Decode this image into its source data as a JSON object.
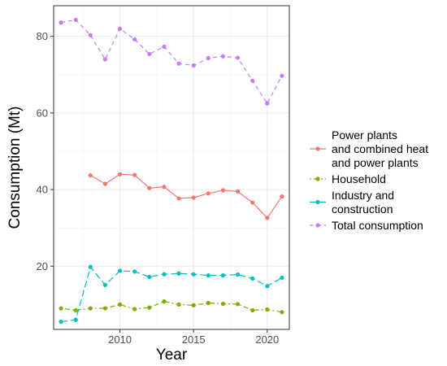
{
  "chart_data": {
    "type": "line",
    "title": "",
    "xlabel": "Year",
    "ylabel": "Consumption (Mt)",
    "xlim": [
      2005.5,
      2021.5
    ],
    "ylim": [
      3.5,
      88
    ],
    "x_ticks": [
      2010,
      2015,
      2020
    ],
    "y_ticks": [
      20,
      40,
      60,
      80
    ],
    "grid": true,
    "legend_position": "right",
    "x": [
      2006,
      2007,
      2008,
      2009,
      2010,
      2011,
      2012,
      2013,
      2014,
      2015,
      2016,
      2017,
      2018,
      2019,
      2020,
      2021
    ],
    "series": [
      {
        "name": "Power plants and combined heat and power plants",
        "legend_lines": [
          "Power plants",
          "and combined heat",
          "and power plants"
        ],
        "color": "#F8766D",
        "dash": "solid",
        "values": [
          null,
          null,
          43.7,
          41.5,
          44.0,
          43.8,
          40.4,
          40.7,
          37.7,
          37.9,
          39.0,
          39.8,
          39.5,
          36.6,
          32.6,
          38.2
        ]
      },
      {
        "name": "Household",
        "legend_lines": [
          "Household"
        ],
        "color": "#7CAE00",
        "dash": "dotdash",
        "values": [
          9.0,
          8.5,
          9.0,
          9.0,
          10.0,
          8.8,
          9.2,
          10.8,
          10.0,
          9.8,
          10.4,
          10.2,
          10.1,
          8.5,
          8.7,
          8.0
        ]
      },
      {
        "name": "Industry and construction",
        "legend_lines": [
          "Industry and",
          "construction"
        ],
        "color": "#00BFC4",
        "dash": "longdash",
        "values": [
          5.5,
          6.0,
          19.8,
          15.1,
          18.8,
          18.6,
          17.2,
          17.9,
          18.1,
          17.9,
          17.6,
          17.6,
          17.8,
          16.8,
          14.8,
          17.0
        ]
      },
      {
        "name": "Total consumption",
        "legend_lines": [
          "Total consumption"
        ],
        "color": "#C77CFF",
        "dash": "dashed",
        "values": [
          83.6,
          84.3,
          80.3,
          74.0,
          82.0,
          79.2,
          75.4,
          77.3,
          72.9,
          72.4,
          74.3,
          74.8,
          74.4,
          68.4,
          62.5,
          69.7
        ]
      }
    ]
  }
}
